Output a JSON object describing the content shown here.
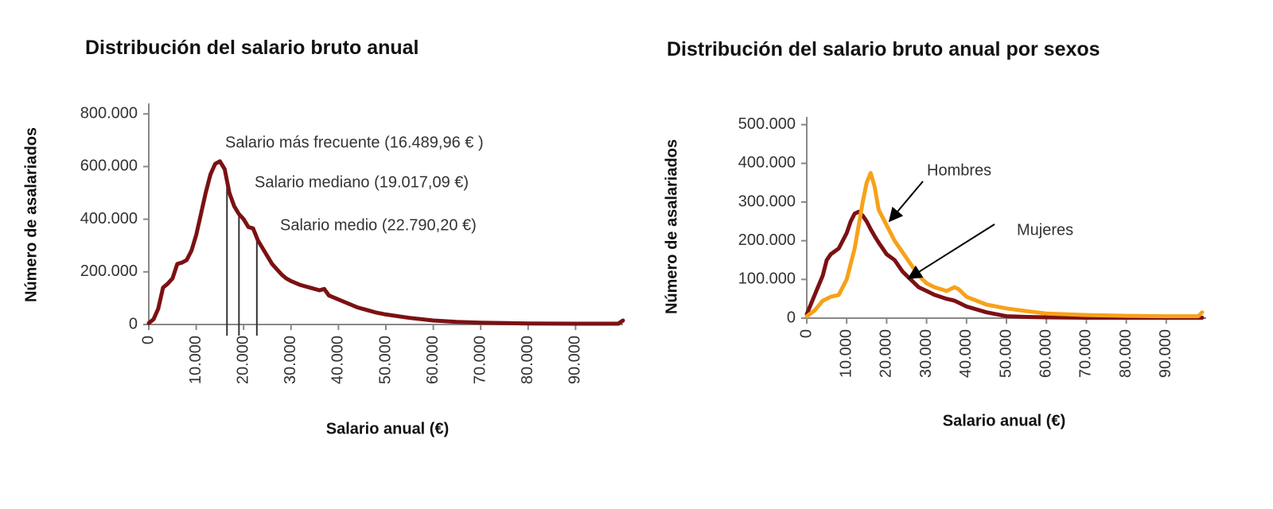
{
  "chart_data": [
    {
      "type": "line",
      "title": "Distribución del salario bruto anual",
      "x_label": "Salario anual (€)",
      "y_label": "Número de asalariados",
      "x": [
        0,
        1000,
        2000,
        3000,
        4000,
        5000,
        6000,
        7000,
        8000,
        9000,
        10000,
        11000,
        12000,
        13000,
        14000,
        15000,
        16000,
        17000,
        18000,
        19000,
        20000,
        21000,
        22000,
        23000,
        24000,
        25000,
        26000,
        27000,
        28000,
        29000,
        30000,
        32000,
        34000,
        36000,
        37000,
        38000,
        40000,
        42000,
        44000,
        46000,
        48000,
        50000,
        55000,
        60000,
        65000,
        70000,
        80000,
        90000,
        99000,
        100000
      ],
      "values": [
        5000,
        20000,
        60000,
        140000,
        155000,
        175000,
        230000,
        235000,
        245000,
        280000,
        340000,
        420000,
        500000,
        570000,
        610000,
        620000,
        590000,
        500000,
        450000,
        420000,
        400000,
        370000,
        365000,
        320000,
        290000,
        260000,
        230000,
        210000,
        190000,
        175000,
        165000,
        150000,
        140000,
        130000,
        135000,
        110000,
        95000,
        80000,
        65000,
        55000,
        45000,
        38000,
        25000,
        15000,
        10000,
        7000,
        4000,
        3000,
        3000,
        15000
      ],
      "color": "#7b1113",
      "xlim": [
        0,
        100000
      ],
      "xticks": [
        0,
        {
          "value": 10000,
          "label": "10.000"
        },
        {
          "value": 20000,
          "label": "20.000"
        },
        {
          "value": 30000,
          "label": "30.000"
        },
        {
          "value": 40000,
          "label": "40.000"
        },
        {
          "value": 50000,
          "label": "50.000"
        },
        {
          "value": 60000,
          "label": "60.000"
        },
        {
          "value": 70000,
          "label": "70.000"
        },
        {
          "value": 80000,
          "label": "80.000"
        },
        {
          "value": 90000,
          "label": "90.000"
        }
      ],
      "ylim": [
        0,
        840000
      ],
      "yticks": [
        0,
        {
          "value": 200000,
          "label": "200.000"
        },
        {
          "value": 400000,
          "label": "400.000"
        },
        {
          "value": 600000,
          "label": "600.000"
        },
        {
          "value": 800000,
          "label": "800.000"
        }
      ],
      "annotations": [
        {
          "text": "Salario más frecuente (16.489,96 € )",
          "x": 16489.96
        },
        {
          "text": "Salario mediano (19.017,09 €)",
          "x": 19017.09
        },
        {
          "text": "Salario medio (22.790,20 €)",
          "x": 22790.2
        }
      ]
    },
    {
      "type": "line",
      "title": "Distribución del salario bruto anual por sexos",
      "x_label": "Salario anual (€)",
      "y_label": "Número de asalariados",
      "x": [
        0,
        2000,
        4000,
        5000,
        6000,
        8000,
        10000,
        11000,
        12000,
        13000,
        14000,
        15000,
        16000,
        17000,
        18000,
        20000,
        22000,
        24000,
        26000,
        28000,
        30000,
        32000,
        35000,
        37000,
        38000,
        40000,
        45000,
        50000,
        55000,
        60000,
        70000,
        80000,
        90000,
        98000,
        99000
      ],
      "series": [
        {
          "name": "Mujeres",
          "color": "#7b1113",
          "values": [
            10000,
            60000,
            110000,
            150000,
            165000,
            180000,
            220000,
            250000,
            270000,
            275000,
            265000,
            250000,
            230000,
            212000,
            195000,
            165000,
            150000,
            120000,
            100000,
            80000,
            70000,
            60000,
            50000,
            45000,
            40000,
            30000,
            15000,
            5000,
            3000,
            2000,
            1000,
            1000,
            1000,
            1000,
            1000
          ]
        },
        {
          "name": "Hombres",
          "color": "#f7a11a",
          "values": [
            5000,
            20000,
            45000,
            50000,
            55000,
            60000,
            100000,
            140000,
            180000,
            240000,
            300000,
            350000,
            375000,
            340000,
            280000,
            240000,
            200000,
            170000,
            140000,
            110000,
            90000,
            80000,
            70000,
            80000,
            75000,
            55000,
            35000,
            25000,
            18000,
            12000,
            8000,
            6000,
            5000,
            5000,
            15000
          ]
        }
      ],
      "xlim": [
        0,
        100000
      ],
      "xticks": [
        0,
        {
          "value": 10000,
          "label": "10.000"
        },
        {
          "value": 20000,
          "label": "20.000"
        },
        {
          "value": 30000,
          "label": "30.000"
        },
        {
          "value": 40000,
          "label": "40.000"
        },
        {
          "value": 50000,
          "label": "50.000"
        },
        {
          "value": 60000,
          "label": "60.000"
        },
        {
          "value": 70000,
          "label": "70.000"
        },
        {
          "value": 80000,
          "label": "80.000"
        },
        {
          "value": 90000,
          "label": "90.000"
        }
      ],
      "ylim": [
        0,
        520000
      ],
      "yticks": [
        0,
        {
          "value": 100000,
          "label": "100.000"
        },
        {
          "value": 200000,
          "label": "200.000"
        },
        {
          "value": 300000,
          "label": "300.000"
        },
        {
          "value": 400000,
          "label": "400.000"
        },
        {
          "value": 500000,
          "label": "500.000"
        }
      ]
    }
  ]
}
